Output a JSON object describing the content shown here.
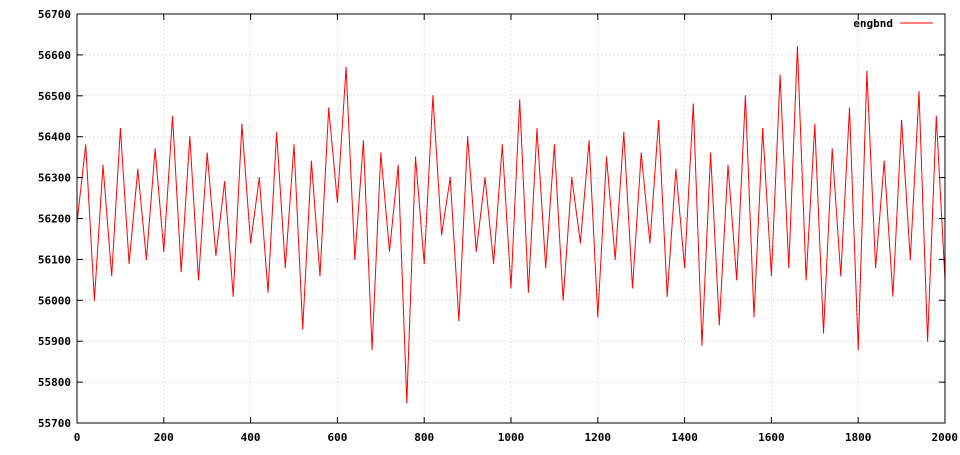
{
  "chart_data": {
    "type": "line",
    "title": "",
    "xlabel": "",
    "ylabel": "",
    "xlim": [
      0,
      2000
    ],
    "ylim": [
      55700,
      56700
    ],
    "x_ticks": [
      0,
      200,
      400,
      600,
      800,
      1000,
      1200,
      1400,
      1600,
      1800,
      2000
    ],
    "x_tick_labels": [
      "0",
      "200",
      "400",
      "600",
      "800",
      "1000",
      "1200",
      "1400",
      "1600",
      "1800",
      "2000"
    ],
    "y_ticks": [
      55700,
      55800,
      55900,
      56000,
      56100,
      56200,
      56300,
      56400,
      56500,
      56600,
      56700
    ],
    "y_tick_labels": [
      "55700",
      "55800",
      "55900",
      "56000",
      "56100",
      "56200",
      "56300",
      "56400",
      "56500",
      "56600",
      "56700"
    ],
    "grid": true,
    "legend_position": "top-right",
    "series": [
      {
        "name": "engbnd",
        "color": "#ff0000",
        "x": [
          0,
          20,
          40,
          60,
          80,
          100,
          120,
          140,
          160,
          180,
          200,
          220,
          240,
          260,
          280,
          300,
          320,
          340,
          360,
          380,
          400,
          420,
          440,
          460,
          480,
          500,
          520,
          540,
          560,
          580,
          600,
          620,
          640,
          660,
          680,
          700,
          720,
          740,
          760,
          780,
          800,
          820,
          840,
          860,
          880,
          900,
          920,
          940,
          960,
          980,
          1000,
          1020,
          1040,
          1060,
          1080,
          1100,
          1120,
          1140,
          1160,
          1180,
          1200,
          1220,
          1240,
          1260,
          1280,
          1300,
          1320,
          1340,
          1360,
          1380,
          1400,
          1420,
          1440,
          1460,
          1480,
          1500,
          1520,
          1540,
          1560,
          1580,
          1600,
          1620,
          1640,
          1660,
          1680,
          1700,
          1720,
          1740,
          1760,
          1780,
          1800,
          1820,
          1840,
          1860,
          1880,
          1900,
          1920,
          1940,
          1960,
          1980,
          2000
        ],
        "y": [
          56190,
          56380,
          56000,
          56330,
          56060,
          56420,
          56090,
          56320,
          56100,
          56370,
          56120,
          56450,
          56070,
          56400,
          56050,
          56360,
          56110,
          56290,
          56010,
          56430,
          56140,
          56300,
          56020,
          56410,
          56080,
          56380,
          55930,
          56340,
          56060,
          56470,
          56240,
          56570,
          56100,
          56390,
          55880,
          56360,
          56120,
          56330,
          55750,
          56350,
          56090,
          56500,
          56160,
          56300,
          55950,
          56400,
          56120,
          56300,
          56090,
          56380,
          56030,
          56490,
          56020,
          56420,
          56080,
          56380,
          56000,
          56300,
          56140,
          56390,
          55960,
          56350,
          56100,
          56410,
          56030,
          56360,
          56140,
          56440,
          56010,
          56320,
          56080,
          56480,
          55890,
          56360,
          55940,
          56330,
          56050,
          56500,
          55960,
          56420,
          56060,
          56550,
          56080,
          56620,
          56050,
          56430,
          55920,
          56370,
          56060,
          56470,
          55880,
          56560,
          56080,
          56340,
          56010,
          56440,
          56100,
          56510,
          55900,
          56450,
          56050
        ]
      }
    ]
  }
}
